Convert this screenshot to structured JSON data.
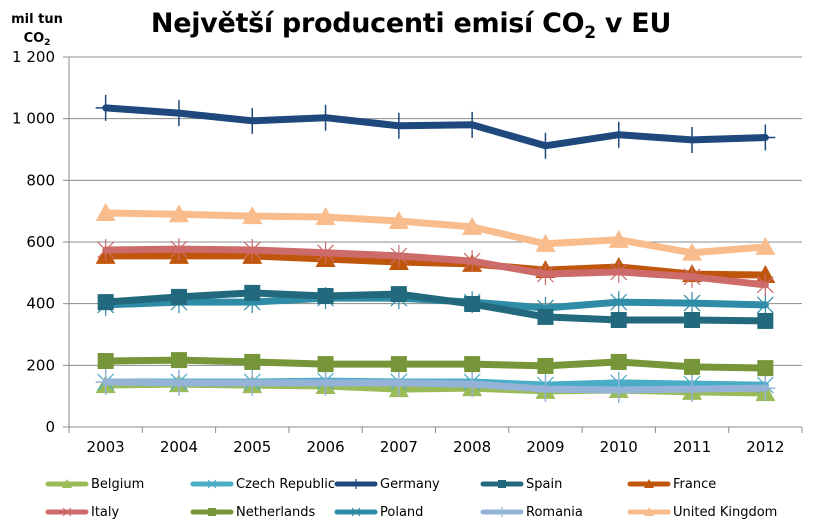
{
  "chart_data": {
    "type": "line",
    "title": "Největší producenti emisí CO",
    "title_subscript": "2",
    "title_suffix": " v EU",
    "ylabel": "mil tun",
    "ylabel_line2": "CO",
    "ylabel_line2_subscript": "2",
    "xlabel": "",
    "ylim": [
      0,
      1200
    ],
    "yticks": [
      0,
      200,
      400,
      600,
      800,
      1000,
      1200
    ],
    "ytick_labels": [
      "0",
      "200",
      "400",
      "600",
      "800",
      "1 000",
      "1 200"
    ],
    "grid": "horizontal",
    "legend_position": "bottom",
    "x": [
      "2003",
      "2004",
      "2005",
      "2006",
      "2007",
      "2008",
      "2009",
      "2010",
      "2011",
      "2012"
    ],
    "series": [
      {
        "name": "Belgium",
        "color": "#9BBB59",
        "marker": "triangle",
        "values": [
          136,
          139,
          136,
          133,
          123,
          126,
          117,
          120,
          114,
          110
        ]
      },
      {
        "name": "Czech Republic",
        "color": "#4BACC6",
        "marker": "star",
        "values": [
          146,
          146,
          146,
          149,
          146,
          146,
          136,
          143,
          139,
          136
        ]
      },
      {
        "name": "Germany",
        "color": "#1F497D",
        "marker": "plus",
        "values": [
          1035,
          1018,
          993,
          1003,
          977,
          980,
          912,
          948,
          931,
          939
        ]
      },
      {
        "name": "Spain",
        "color": "#23697E",
        "marker": "square",
        "values": [
          405,
          422,
          435,
          425,
          431,
          399,
          357,
          347,
          347,
          344
        ]
      },
      {
        "name": "France",
        "color": "#C0560C",
        "marker": "triangle",
        "values": [
          555,
          555,
          555,
          545,
          535,
          529,
          509,
          519,
          496,
          493
        ]
      },
      {
        "name": "Italy",
        "color": "#CD6B6A",
        "marker": "star",
        "values": [
          574,
          577,
          574,
          565,
          555,
          538,
          496,
          503,
          487,
          461
        ]
      },
      {
        "name": "Netherlands",
        "color": "#77963A",
        "marker": "square",
        "values": [
          214,
          217,
          211,
          204,
          204,
          204,
          198,
          211,
          195,
          191
        ]
      },
      {
        "name": "Poland",
        "color": "#2E8CA6",
        "marker": "star",
        "values": [
          396,
          405,
          405,
          418,
          418,
          405,
          386,
          405,
          402,
          396
        ]
      },
      {
        "name": "Romania",
        "color": "#95B3D7",
        "marker": "plus",
        "values": [
          146,
          143,
          143,
          143,
          143,
          139,
          123,
          120,
          123,
          126
        ]
      },
      {
        "name": "United Kingdom",
        "color": "#F9BC8C",
        "marker": "triangle",
        "values": [
          694,
          690,
          684,
          681,
          668,
          649,
          594,
          607,
          565,
          584
        ]
      }
    ]
  }
}
